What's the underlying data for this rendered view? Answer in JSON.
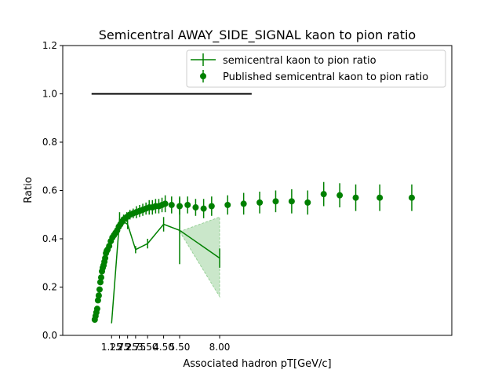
{
  "chart_data": {
    "type": "line",
    "title": "Semicentral AWAY_SIDE_SIGNAL kaon to pion ratio",
    "xlabel": "Associated hadron pT[GeV/c]",
    "ylabel": "Ratio",
    "xlim": [
      -1.8,
      22.5
    ],
    "ylim": [
      0.0,
      1.2
    ],
    "grid": false,
    "legend_position": "top-right",
    "x_ticks": [
      1.25,
      1.75,
      2.25,
      2.75,
      3.5,
      4.5,
      5.5,
      8.0
    ],
    "x_tick_labels": [
      "1.25",
      "1.75",
      "2.25",
      "2.75",
      "3.50",
      "4.50",
      "5.50",
      "8.00"
    ],
    "y_ticks": [
      0.0,
      0.2,
      0.4,
      0.6,
      0.8,
      1.0,
      1.2
    ],
    "y_tick_labels": [
      "0.0",
      "0.2",
      "0.4",
      "0.6",
      "0.8",
      "1.0",
      "1.2"
    ],
    "reference_line": {
      "y": 1.0,
      "x_start": 0.0,
      "x_end": 10.0,
      "color": "#000000"
    },
    "series": [
      {
        "name": "semicentral kaon to pion ratio",
        "style": "line-errorbar",
        "color": "#008000",
        "x": [
          1.25,
          1.75,
          2.25,
          2.75,
          3.5,
          4.5,
          5.5,
          8.0
        ],
        "y": [
          0.05,
          0.48,
          0.46,
          0.355,
          0.38,
          0.46,
          0.435,
          0.32
        ],
        "yerr": [
          0.0,
          0.03,
          0.02,
          0.015,
          0.02,
          0.03,
          0.14,
          0.04
        ],
        "xerr": [
          0.0,
          0.0,
          0.0,
          0.0,
          0.0,
          0.0,
          0.0,
          0.0
        ],
        "band": {
          "x": [
            5.5,
            8.0
          ],
          "upper": [
            0.43,
            0.49
          ],
          "lower": [
            0.43,
            0.16
          ],
          "color": "#2ca02c",
          "opacity": 0.25
        }
      },
      {
        "name": "Published semicentral kaon to pion ratio",
        "style": "marker-errorbar",
        "color": "#008000",
        "x": [
          0.2,
          0.25,
          0.3,
          0.35,
          0.4,
          0.45,
          0.5,
          0.55,
          0.6,
          0.65,
          0.7,
          0.75,
          0.8,
          0.85,
          0.9,
          0.95,
          1.0,
          1.1,
          1.2,
          1.3,
          1.4,
          1.5,
          1.6,
          1.7,
          1.8,
          1.9,
          2.0,
          2.2,
          2.4,
          2.6,
          2.8,
          3.0,
          3.2,
          3.4,
          3.6,
          3.8,
          4.0,
          4.2,
          4.4,
          4.6,
          5.0,
          5.5,
          6.0,
          6.5,
          7.0,
          7.5,
          8.5,
          9.5,
          10.5,
          11.5,
          12.5,
          13.5,
          14.5,
          15.5,
          16.5,
          18.0,
          20.0
        ],
        "y": [
          0.065,
          0.08,
          0.095,
          0.11,
          0.145,
          0.165,
          0.19,
          0.22,
          0.24,
          0.265,
          0.28,
          0.29,
          0.305,
          0.32,
          0.34,
          0.35,
          0.355,
          0.37,
          0.39,
          0.405,
          0.415,
          0.425,
          0.435,
          0.45,
          0.46,
          0.47,
          0.48,
          0.49,
          0.5,
          0.505,
          0.51,
          0.515,
          0.52,
          0.525,
          0.53,
          0.53,
          0.535,
          0.535,
          0.54,
          0.545,
          0.54,
          0.535,
          0.54,
          0.53,
          0.525,
          0.535,
          0.54,
          0.545,
          0.55,
          0.555,
          0.555,
          0.55,
          0.585,
          0.58,
          0.57,
          0.57,
          0.57
        ],
        "yerr": [
          0.01,
          0.01,
          0.01,
          0.01,
          0.01,
          0.01,
          0.01,
          0.01,
          0.01,
          0.01,
          0.01,
          0.01,
          0.01,
          0.01,
          0.01,
          0.01,
          0.015,
          0.015,
          0.015,
          0.015,
          0.015,
          0.015,
          0.015,
          0.015,
          0.02,
          0.02,
          0.02,
          0.02,
          0.02,
          0.02,
          0.025,
          0.025,
          0.025,
          0.025,
          0.03,
          0.03,
          0.03,
          0.03,
          0.03,
          0.035,
          0.035,
          0.035,
          0.035,
          0.035,
          0.04,
          0.04,
          0.04,
          0.045,
          0.045,
          0.045,
          0.05,
          0.05,
          0.05,
          0.05,
          0.055,
          0.055,
          0.055
        ]
      }
    ]
  },
  "legend": {
    "items": [
      "semicentral kaon to pion ratio",
      "Published semicentral kaon to pion ratio"
    ]
  }
}
